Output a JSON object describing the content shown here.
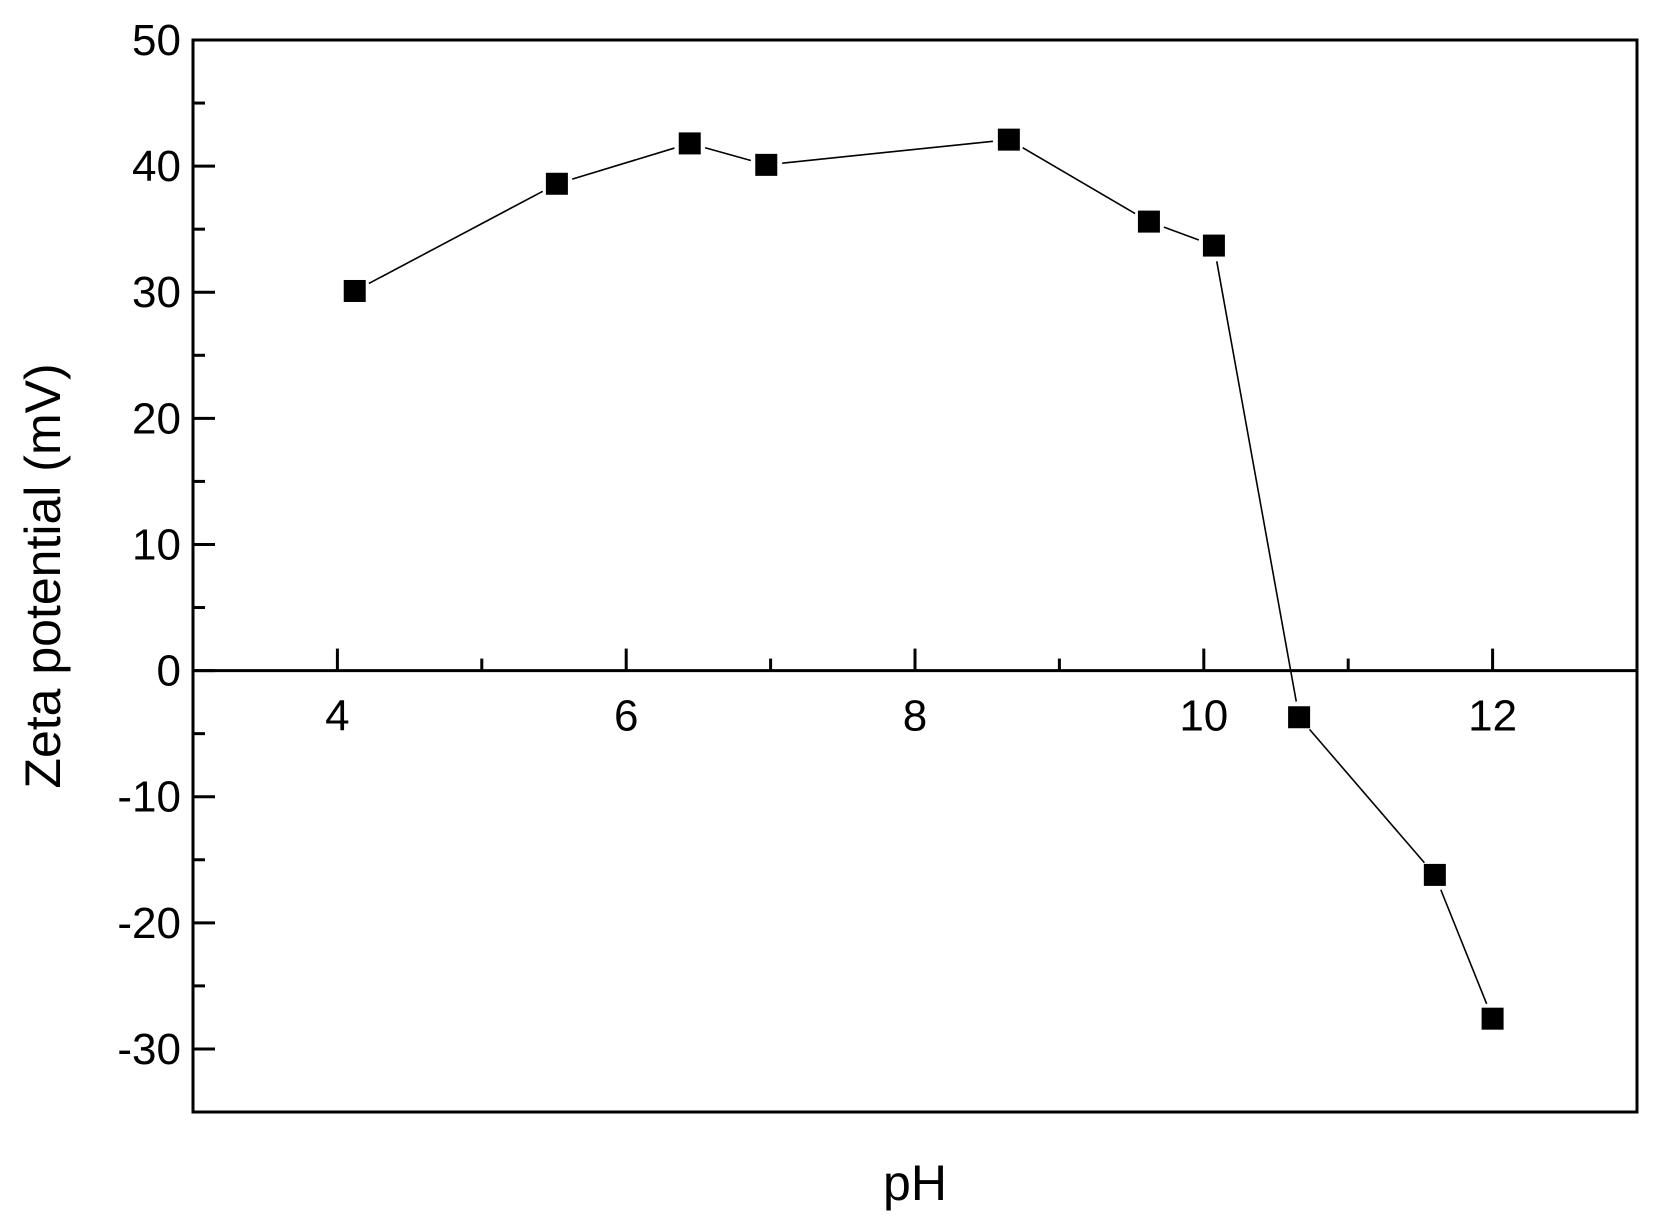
{
  "chart_data": {
    "type": "scatter",
    "title": "",
    "xlabel": "pH",
    "ylabel": "Zeta potential (mV)",
    "xlim": [
      3,
      13
    ],
    "ylim": [
      -35,
      50
    ],
    "x_ticks": [
      4,
      6,
      8,
      10,
      12
    ],
    "x_tick_labels": [
      "4",
      "6",
      "8",
      "10",
      "12"
    ],
    "y_ticks": [
      50,
      40,
      30,
      20,
      10,
      0,
      -10,
      -20,
      -30
    ],
    "y_tick_labels": [
      "50",
      "40",
      "30",
      "20",
      "10",
      "0",
      "-10",
      "-20",
      "-30"
    ],
    "grid": false,
    "zero_line": true,
    "marker": "square",
    "line_connected": true,
    "color": "#000000",
    "series": [
      {
        "x": [
          4.12,
          5.52,
          6.44,
          6.97,
          8.65,
          9.62,
          10.07,
          10.66,
          11.6,
          12.0
        ],
        "y": [
          30.1,
          38.6,
          41.8,
          40.1,
          42.1,
          35.6,
          33.7,
          -3.7,
          -16.2,
          -27.6
        ]
      }
    ]
  }
}
